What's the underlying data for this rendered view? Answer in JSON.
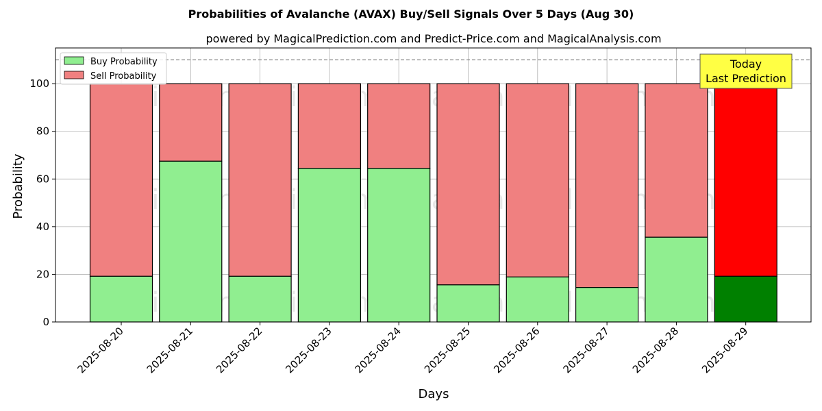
{
  "chart_data": {
    "type": "bar",
    "stacked": true,
    "title": "Probabilities of Avalanche (AVAX) Buy/Sell Signals Over 5 Days (Aug 30)",
    "subtitle": "powered by MagicalPrediction.com and Predict-Price.com and MagicalAnalysis.com",
    "xlabel": "Days",
    "ylabel": "Probability",
    "ylim": [
      0,
      115
    ],
    "yticks": [
      "0",
      "20",
      "40",
      "60",
      "80",
      "100"
    ],
    "grid": true,
    "legend_position": "top-left",
    "categories": [
      "2025-08-20",
      "2025-08-21",
      "2025-08-22",
      "2025-08-23",
      "2025-08-24",
      "2025-08-25",
      "2025-08-26",
      "2025-08-27",
      "2025-08-28",
      "2025-08-29"
    ],
    "series": [
      {
        "name": "Buy Probability",
        "color": "#90ee90",
        "values": [
          19.2,
          67.5,
          19.2,
          64.5,
          64.5,
          15.6,
          18.9,
          14.5,
          35.6,
          19.2
        ]
      },
      {
        "name": "Sell Probability",
        "color": "#f08080",
        "values": [
          80.8,
          32.5,
          80.8,
          35.5,
          35.5,
          84.4,
          81.1,
          85.5,
          64.4,
          80.8
        ]
      }
    ],
    "highlight": {
      "index": 9,
      "buy_color": "#008000",
      "sell_color": "#ff0000"
    },
    "reference_line": {
      "y": 110,
      "style": "dashed",
      "color": "#808080"
    },
    "annotation": {
      "lines": [
        "Today",
        "Last Prediction"
      ],
      "background": "#ffff44"
    },
    "watermarks": [
      "MagicalAnalysis.com",
      "MagicalPrediction.com"
    ]
  }
}
